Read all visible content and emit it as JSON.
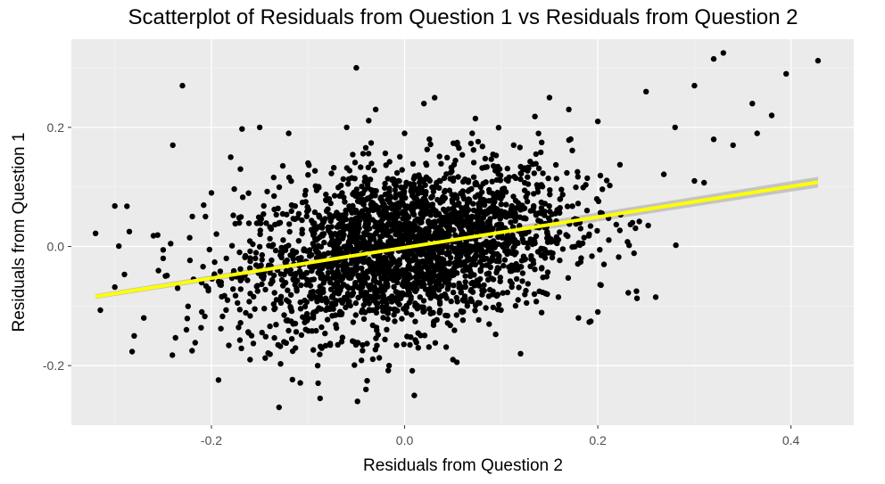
{
  "chart_data": {
    "type": "scatter",
    "title": "Scatterplot of Residuals from Question 1 vs Residuals from Question 2",
    "xlabel": "Residuals from Question 2",
    "ylabel": "Residuals from Question 1",
    "xlim": [
      -0.345,
      0.465
    ],
    "ylim": [
      -0.3,
      0.348
    ],
    "x_ticks": [
      -0.2,
      0.0,
      0.2,
      0.4
    ],
    "x_tick_labels": [
      "-0.2",
      "0.0",
      "0.2",
      "0.4"
    ],
    "y_ticks": [
      -0.2,
      0.0,
      0.2
    ],
    "y_tick_labels": [
      "-0.2",
      "0.0",
      "0.2"
    ],
    "grid": true,
    "background": "#ebebeb",
    "point_color": "#000000",
    "fit_line": {
      "method": "linear",
      "color": "#ffff00",
      "ci_band_color": "#b3b3b3",
      "x": [
        -0.32,
        0.428
      ],
      "y": [
        -0.084,
        0.108
      ]
    },
    "points": [
      [
        -0.32,
        0.022
      ],
      [
        -0.315,
        -0.107
      ],
      [
        -0.3,
        0.068
      ],
      [
        -0.29,
        -0.047
      ],
      [
        -0.285,
        0.025
      ],
      [
        -0.28,
        -0.15
      ],
      [
        -0.27,
        -0.12
      ],
      [
        -0.26,
        0.018
      ],
      [
        -0.25,
        -0.02
      ],
      [
        -0.24,
        0.17
      ],
      [
        -0.235,
        -0.07
      ],
      [
        -0.23,
        0.27
      ],
      [
        -0.22,
        -0.175
      ],
      [
        -0.21,
        -0.11
      ],
      [
        -0.2,
        0.09
      ],
      [
        -0.19,
        -0.06
      ],
      [
        -0.18,
        0.15
      ],
      [
        -0.17,
        0.13
      ],
      [
        -0.16,
        -0.19
      ],
      [
        -0.15,
        0.2
      ],
      [
        -0.12,
        0.19
      ],
      [
        -0.13,
        -0.27
      ],
      [
        -0.1,
        0.14
      ],
      [
        -0.09,
        -0.2
      ],
      [
        -0.06,
        0.2
      ],
      [
        -0.05,
        0.3
      ],
      [
        -0.04,
        -0.24
      ],
      [
        -0.03,
        0.23
      ],
      [
        0.0,
        0.19
      ],
      [
        0.01,
        -0.25
      ],
      [
        0.02,
        0.24
      ],
      [
        0.05,
        -0.19
      ],
      [
        0.07,
        0.19
      ],
      [
        0.12,
        -0.18
      ],
      [
        0.15,
        0.25
      ],
      [
        0.17,
        0.23
      ],
      [
        0.2,
        0.21
      ],
      [
        0.25,
        0.26
      ],
      [
        0.28,
        0.2
      ],
      [
        0.3,
        0.27
      ],
      [
        0.32,
        0.315
      ],
      [
        0.33,
        0.325
      ],
      [
        0.36,
        0.24
      ],
      [
        0.365,
        0.19
      ],
      [
        0.38,
        0.22
      ],
      [
        0.395,
        0.29
      ],
      [
        0.428,
        0.312
      ],
      [
        0.26,
        -0.085
      ],
      [
        0.24,
        -0.075
      ],
      [
        0.2,
        -0.11
      ],
      [
        0.18,
        -0.12
      ],
      [
        0.3,
        0.11
      ],
      [
        0.31,
        0.107
      ],
      [
        0.34,
        0.17
      ],
      [
        0.32,
        0.18
      ]
    ]
  }
}
